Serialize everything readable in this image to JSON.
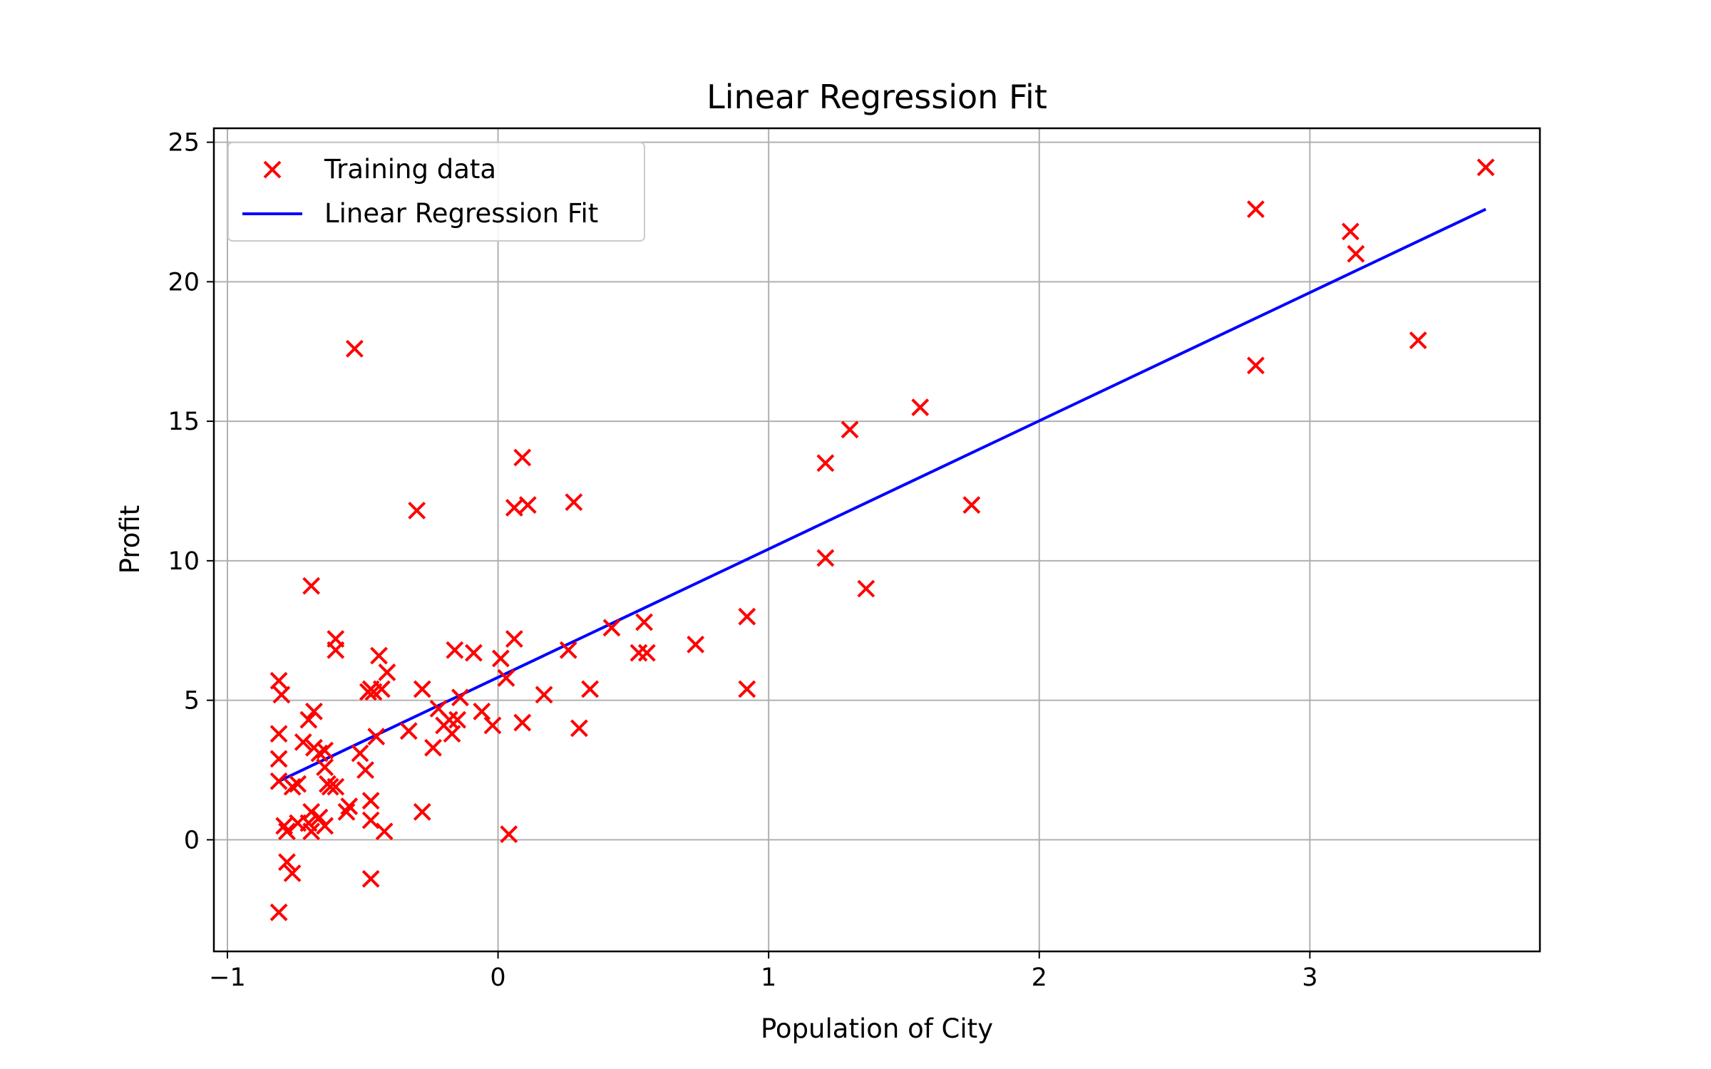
{
  "chart_data": {
    "type": "scatter",
    "title": "Linear Regression Fit",
    "xlabel": "Population of City",
    "ylabel": "Profit",
    "xlim": [
      -1.05,
      3.85
    ],
    "ylim": [
      -4.0,
      25.5
    ],
    "x_ticks": [
      -1,
      0,
      1,
      2,
      3
    ],
    "x_tick_labels": [
      "−1",
      "0",
      "1",
      "2",
      "3"
    ],
    "y_ticks": [
      0,
      5,
      10,
      15,
      20,
      25
    ],
    "y_tick_labels": [
      "0",
      "5",
      "10",
      "15",
      "20",
      "25"
    ],
    "grid": true,
    "legend_position": "upper-left",
    "series": [
      {
        "name": "Training data",
        "kind": "scatter",
        "marker": "x",
        "color": "#ff0000",
        "points": [
          [
            -0.81,
            5.7
          ],
          [
            -0.8,
            5.2
          ],
          [
            -0.81,
            3.8
          ],
          [
            -0.81,
            2.9
          ],
          [
            -0.81,
            2.1
          ],
          [
            -0.79,
            0.5
          ],
          [
            -0.78,
            0.3
          ],
          [
            -0.78,
            -0.8
          ],
          [
            -0.76,
            -1.2
          ],
          [
            -0.81,
            -2.6
          ],
          [
            -0.76,
            1.9
          ],
          [
            -0.74,
            2.0
          ],
          [
            -0.72,
            3.5
          ],
          [
            -0.7,
            4.3
          ],
          [
            -0.68,
            4.6
          ],
          [
            -0.68,
            3.3
          ],
          [
            -0.66,
            3.1
          ],
          [
            -0.64,
            3.2
          ],
          [
            -0.64,
            2.6
          ],
          [
            -0.63,
            2.0
          ],
          [
            -0.62,
            1.9
          ],
          [
            -0.6,
            1.9
          ],
          [
            -0.64,
            0.5
          ],
          [
            -0.66,
            0.8
          ],
          [
            -0.69,
            1.0
          ],
          [
            -0.7,
            0.6
          ],
          [
            -0.69,
            0.3
          ],
          [
            -0.74,
            0.6
          ],
          [
            -0.69,
            9.1
          ],
          [
            -0.6,
            7.2
          ],
          [
            -0.6,
            6.8
          ],
          [
            -0.56,
            1.0
          ],
          [
            -0.55,
            1.2
          ],
          [
            -0.51,
            3.1
          ],
          [
            -0.49,
            2.5
          ],
          [
            -0.48,
            5.3
          ],
          [
            -0.47,
            5.4
          ],
          [
            -0.46,
            5.3
          ],
          [
            -0.45,
            3.7
          ],
          [
            -0.44,
            6.6
          ],
          [
            -0.43,
            5.4
          ],
          [
            -0.41,
            6.0
          ],
          [
            -0.47,
            1.4
          ],
          [
            -0.47,
            0.7
          ],
          [
            -0.42,
            0.3
          ],
          [
            -0.47,
            -1.4
          ],
          [
            -0.53,
            17.6
          ],
          [
            -0.33,
            3.9
          ],
          [
            -0.3,
            11.8
          ],
          [
            -0.28,
            5.4
          ],
          [
            -0.28,
            1.0
          ],
          [
            -0.24,
            3.3
          ],
          [
            -0.22,
            4.7
          ],
          [
            -0.2,
            4.1
          ],
          [
            -0.18,
            4.3
          ],
          [
            -0.17,
            3.8
          ],
          [
            -0.16,
            6.8
          ],
          [
            -0.15,
            4.3
          ],
          [
            -0.14,
            5.1
          ],
          [
            -0.09,
            6.7
          ],
          [
            -0.06,
            4.6
          ],
          [
            -0.02,
            4.1
          ],
          [
            0.01,
            6.5
          ],
          [
            0.03,
            5.8
          ],
          [
            0.04,
            0.2
          ],
          [
            0.06,
            7.2
          ],
          [
            0.06,
            11.9
          ],
          [
            0.09,
            13.7
          ],
          [
            0.09,
            4.2
          ],
          [
            0.11,
            12.0
          ],
          [
            0.17,
            5.2
          ],
          [
            0.26,
            6.8
          ],
          [
            0.28,
            12.1
          ],
          [
            0.3,
            4.0
          ],
          [
            0.34,
            5.4
          ],
          [
            0.42,
            7.6
          ],
          [
            0.52,
            6.7
          ],
          [
            0.54,
            7.8
          ],
          [
            0.55,
            6.7
          ],
          [
            0.73,
            7.0
          ],
          [
            0.92,
            8.0
          ],
          [
            0.92,
            5.4
          ],
          [
            1.21,
            13.5
          ],
          [
            1.21,
            10.1
          ],
          [
            1.3,
            14.7
          ],
          [
            1.36,
            9.0
          ],
          [
            1.56,
            15.5
          ],
          [
            1.75,
            12.0
          ],
          [
            2.8,
            22.6
          ],
          [
            2.8,
            17.0
          ],
          [
            3.15,
            21.8
          ],
          [
            3.17,
            21.0
          ],
          [
            3.4,
            17.9
          ],
          [
            3.65,
            24.1
          ]
        ]
      },
      {
        "name": "Linear Regression Fit",
        "kind": "line",
        "color": "#0000ff",
        "x": [
          -0.81,
          3.65
        ],
        "y": [
          2.1,
          22.6
        ]
      }
    ]
  }
}
